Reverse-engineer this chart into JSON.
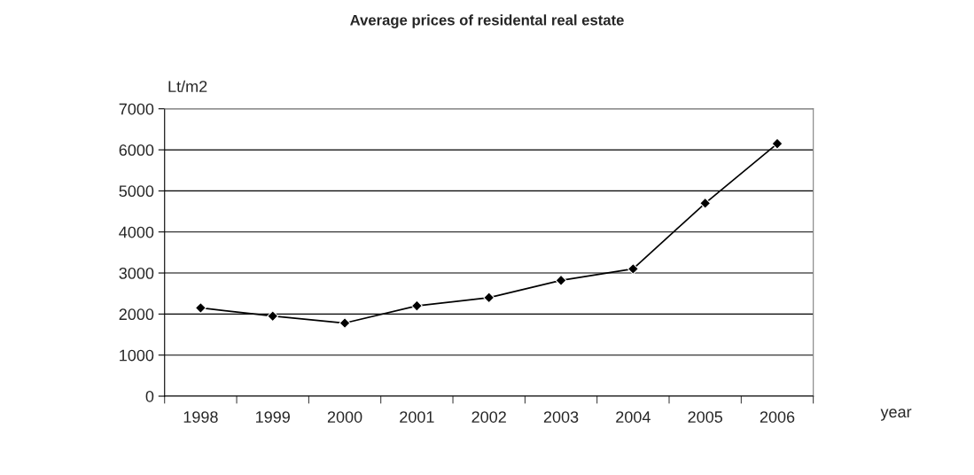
{
  "chart_data": {
    "type": "line",
    "title": "Average prices of residental real estate",
    "ylabel": "Lt/m2",
    "xlabel": "year",
    "categories": [
      "1998",
      "1999",
      "2000",
      "2001",
      "2002",
      "2003",
      "2004",
      "2005",
      "2006"
    ],
    "series": [
      {
        "color": "#000000",
        "values": [
          2150,
          1950,
          1780,
          2200,
          2400,
          2820,
          3100,
          4700,
          6150
        ]
      }
    ],
    "ylim": [
      0,
      7000
    ],
    "yticks": [
      0,
      1000,
      2000,
      3000,
      4000,
      5000,
      6000,
      7000
    ],
    "grid": "y",
    "marker": "diamond",
    "line_style": "solid",
    "legend": false
  }
}
